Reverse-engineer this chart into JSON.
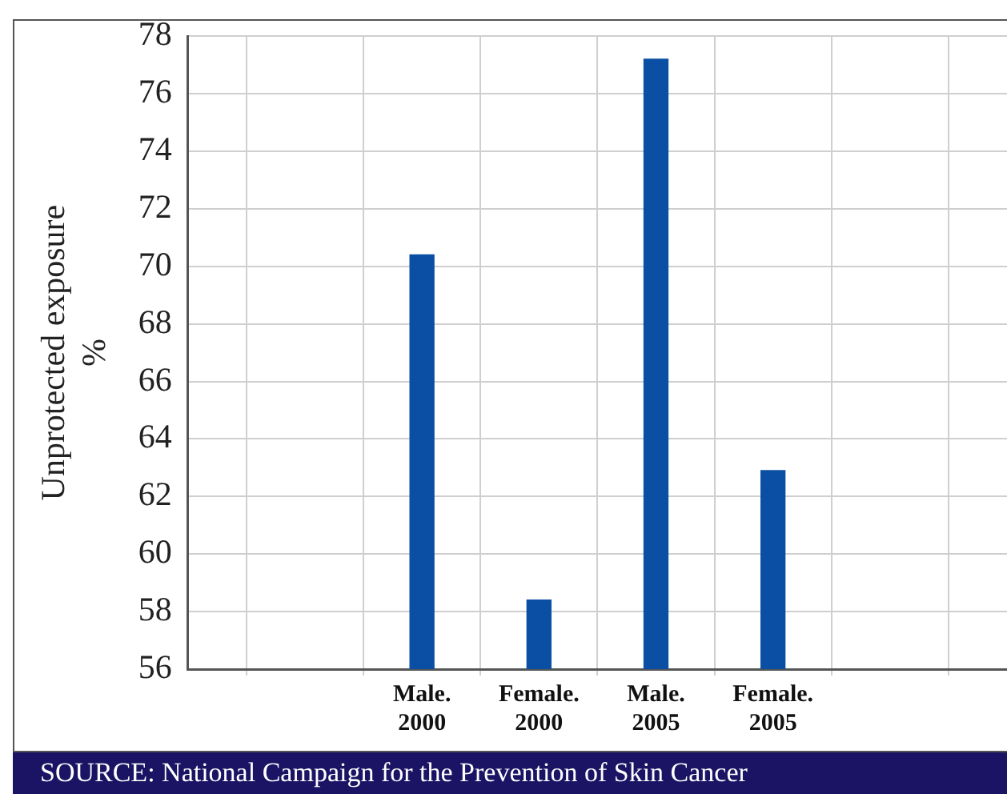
{
  "chart_data": {
    "type": "bar",
    "categories": [
      null,
      "Male. 2000",
      "Female. 2000",
      "Male. 2005",
      "Female. 2005",
      null
    ],
    "values": [
      null,
      70.4,
      58.4,
      77.2,
      62.9,
      null
    ],
    "color": "#0a4fa3",
    "ylabel": "Unprotected exposure %",
    "ylim": [
      56,
      78
    ],
    "yticks": [
      56,
      58,
      60,
      62,
      64,
      66,
      68,
      70,
      72,
      74,
      76,
      78
    ],
    "grid": true,
    "legend": false,
    "annotations": [
      "SOURCE: National Campaign for the Prevention of Skin Cancer"
    ]
  }
}
